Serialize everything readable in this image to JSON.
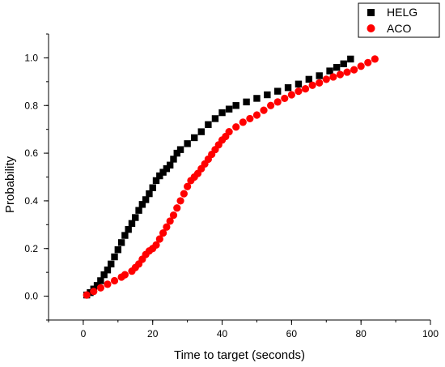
{
  "chart_data": {
    "type": "scatter",
    "title": "",
    "xlabel": "Time to target (seconds)",
    "ylabel": "Probability",
    "xlim": [
      -10,
      100
    ],
    "ylim": [
      -0.1,
      1.1
    ],
    "x_ticks": [
      "0",
      "20",
      "40",
      "60",
      "80",
      "100"
    ],
    "y_ticks": [
      "0.0",
      "0.2",
      "0.4",
      "0.6",
      "0.8",
      "1.0"
    ],
    "grid": false,
    "legend_position": "top-right",
    "series": [
      {
        "name": "HELG",
        "marker": "square",
        "color": "#000000",
        "points": [
          [
            1,
            0.005
          ],
          [
            2,
            0.015
          ],
          [
            3,
            0.03
          ],
          [
            4,
            0.045
          ],
          [
            5,
            0.065
          ],
          [
            6,
            0.09
          ],
          [
            7,
            0.11
          ],
          [
            8,
            0.135
          ],
          [
            9,
            0.165
          ],
          [
            10,
            0.195
          ],
          [
            11,
            0.225
          ],
          [
            12,
            0.255
          ],
          [
            13,
            0.28
          ],
          [
            14,
            0.305
          ],
          [
            15,
            0.33
          ],
          [
            16,
            0.36
          ],
          [
            17,
            0.385
          ],
          [
            18,
            0.405
          ],
          [
            19,
            0.43
          ],
          [
            20,
            0.455
          ],
          [
            21,
            0.485
          ],
          [
            22,
            0.505
          ],
          [
            23,
            0.52
          ],
          [
            24,
            0.535
          ],
          [
            25,
            0.55
          ],
          [
            26,
            0.575
          ],
          [
            27,
            0.6
          ],
          [
            28,
            0.615
          ],
          [
            30,
            0.64
          ],
          [
            32,
            0.665
          ],
          [
            34,
            0.69
          ],
          [
            36,
            0.72
          ],
          [
            38,
            0.745
          ],
          [
            40,
            0.77
          ],
          [
            42,
            0.785
          ],
          [
            44,
            0.8
          ],
          [
            47,
            0.815
          ],
          [
            50,
            0.83
          ],
          [
            53,
            0.845
          ],
          [
            56,
            0.86
          ],
          [
            59,
            0.875
          ],
          [
            62,
            0.89
          ],
          [
            65,
            0.91
          ],
          [
            68,
            0.925
          ],
          [
            71,
            0.945
          ],
          [
            73,
            0.96
          ],
          [
            75,
            0.975
          ],
          [
            77,
            0.995
          ]
        ]
      },
      {
        "name": "ACO",
        "marker": "circle",
        "color": "#ff0000",
        "points": [
          [
            1,
            0.005
          ],
          [
            3,
            0.02
          ],
          [
            5,
            0.035
          ],
          [
            7,
            0.05
          ],
          [
            9,
            0.065
          ],
          [
            11,
            0.08
          ],
          [
            12,
            0.09
          ],
          [
            14,
            0.105
          ],
          [
            15,
            0.12
          ],
          [
            16,
            0.135
          ],
          [
            17,
            0.155
          ],
          [
            18,
            0.175
          ],
          [
            19,
            0.19
          ],
          [
            20,
            0.2
          ],
          [
            21,
            0.215
          ],
          [
            22,
            0.24
          ],
          [
            23,
            0.265
          ],
          [
            24,
            0.29
          ],
          [
            25,
            0.315
          ],
          [
            26,
            0.34
          ],
          [
            27,
            0.37
          ],
          [
            28,
            0.4
          ],
          [
            29,
            0.43
          ],
          [
            30,
            0.46
          ],
          [
            31,
            0.485
          ],
          [
            32,
            0.5
          ],
          [
            33,
            0.515
          ],
          [
            34,
            0.535
          ],
          [
            35,
            0.555
          ],
          [
            36,
            0.575
          ],
          [
            37,
            0.595
          ],
          [
            38,
            0.615
          ],
          [
            39,
            0.635
          ],
          [
            40,
            0.655
          ],
          [
            41,
            0.67
          ],
          [
            42,
            0.69
          ],
          [
            44,
            0.71
          ],
          [
            46,
            0.73
          ],
          [
            48,
            0.745
          ],
          [
            50,
            0.76
          ],
          [
            52,
            0.78
          ],
          [
            54,
            0.8
          ],
          [
            56,
            0.815
          ],
          [
            58,
            0.83
          ],
          [
            60,
            0.845
          ],
          [
            62,
            0.86
          ],
          [
            64,
            0.87
          ],
          [
            66,
            0.885
          ],
          [
            68,
            0.895
          ],
          [
            70,
            0.91
          ],
          [
            72,
            0.92
          ],
          [
            74,
            0.93
          ],
          [
            76,
            0.94
          ],
          [
            78,
            0.95
          ],
          [
            80,
            0.965
          ],
          [
            82,
            0.98
          ],
          [
            84,
            0.995
          ]
        ]
      }
    ]
  }
}
